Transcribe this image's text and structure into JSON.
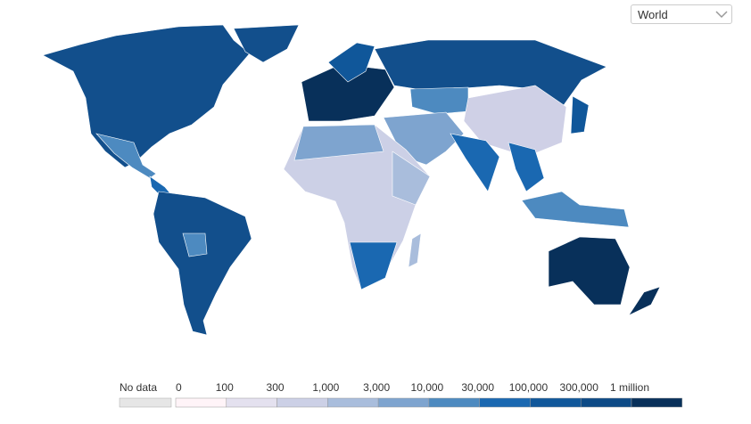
{
  "region_select": "World",
  "legend": {
    "no_data": "No data",
    "ticks": [
      0,
      100,
      300,
      {
        "value": 1000,
        "label": "1,000"
      },
      {
        "value": 3000,
        "label": "3,000"
      },
      {
        "value": 10000,
        "label": "10,000"
      },
      {
        "value": 30000,
        "label": "30,000"
      },
      {
        "value": 100000,
        "label": "100,000"
      },
      {
        "value": 300000,
        "label": "300,000"
      },
      {
        "value": 1000000,
        "label": "1 million"
      }
    ],
    "colors": [
      "#fff4f8",
      "#e4e1ef",
      "#ccd0e6",
      "#a9bddc",
      "#7ea4cf",
      "#4d8ac0",
      "#1a68b1",
      "#10579a",
      "#0d4a86",
      "#08305a"
    ]
  }
}
